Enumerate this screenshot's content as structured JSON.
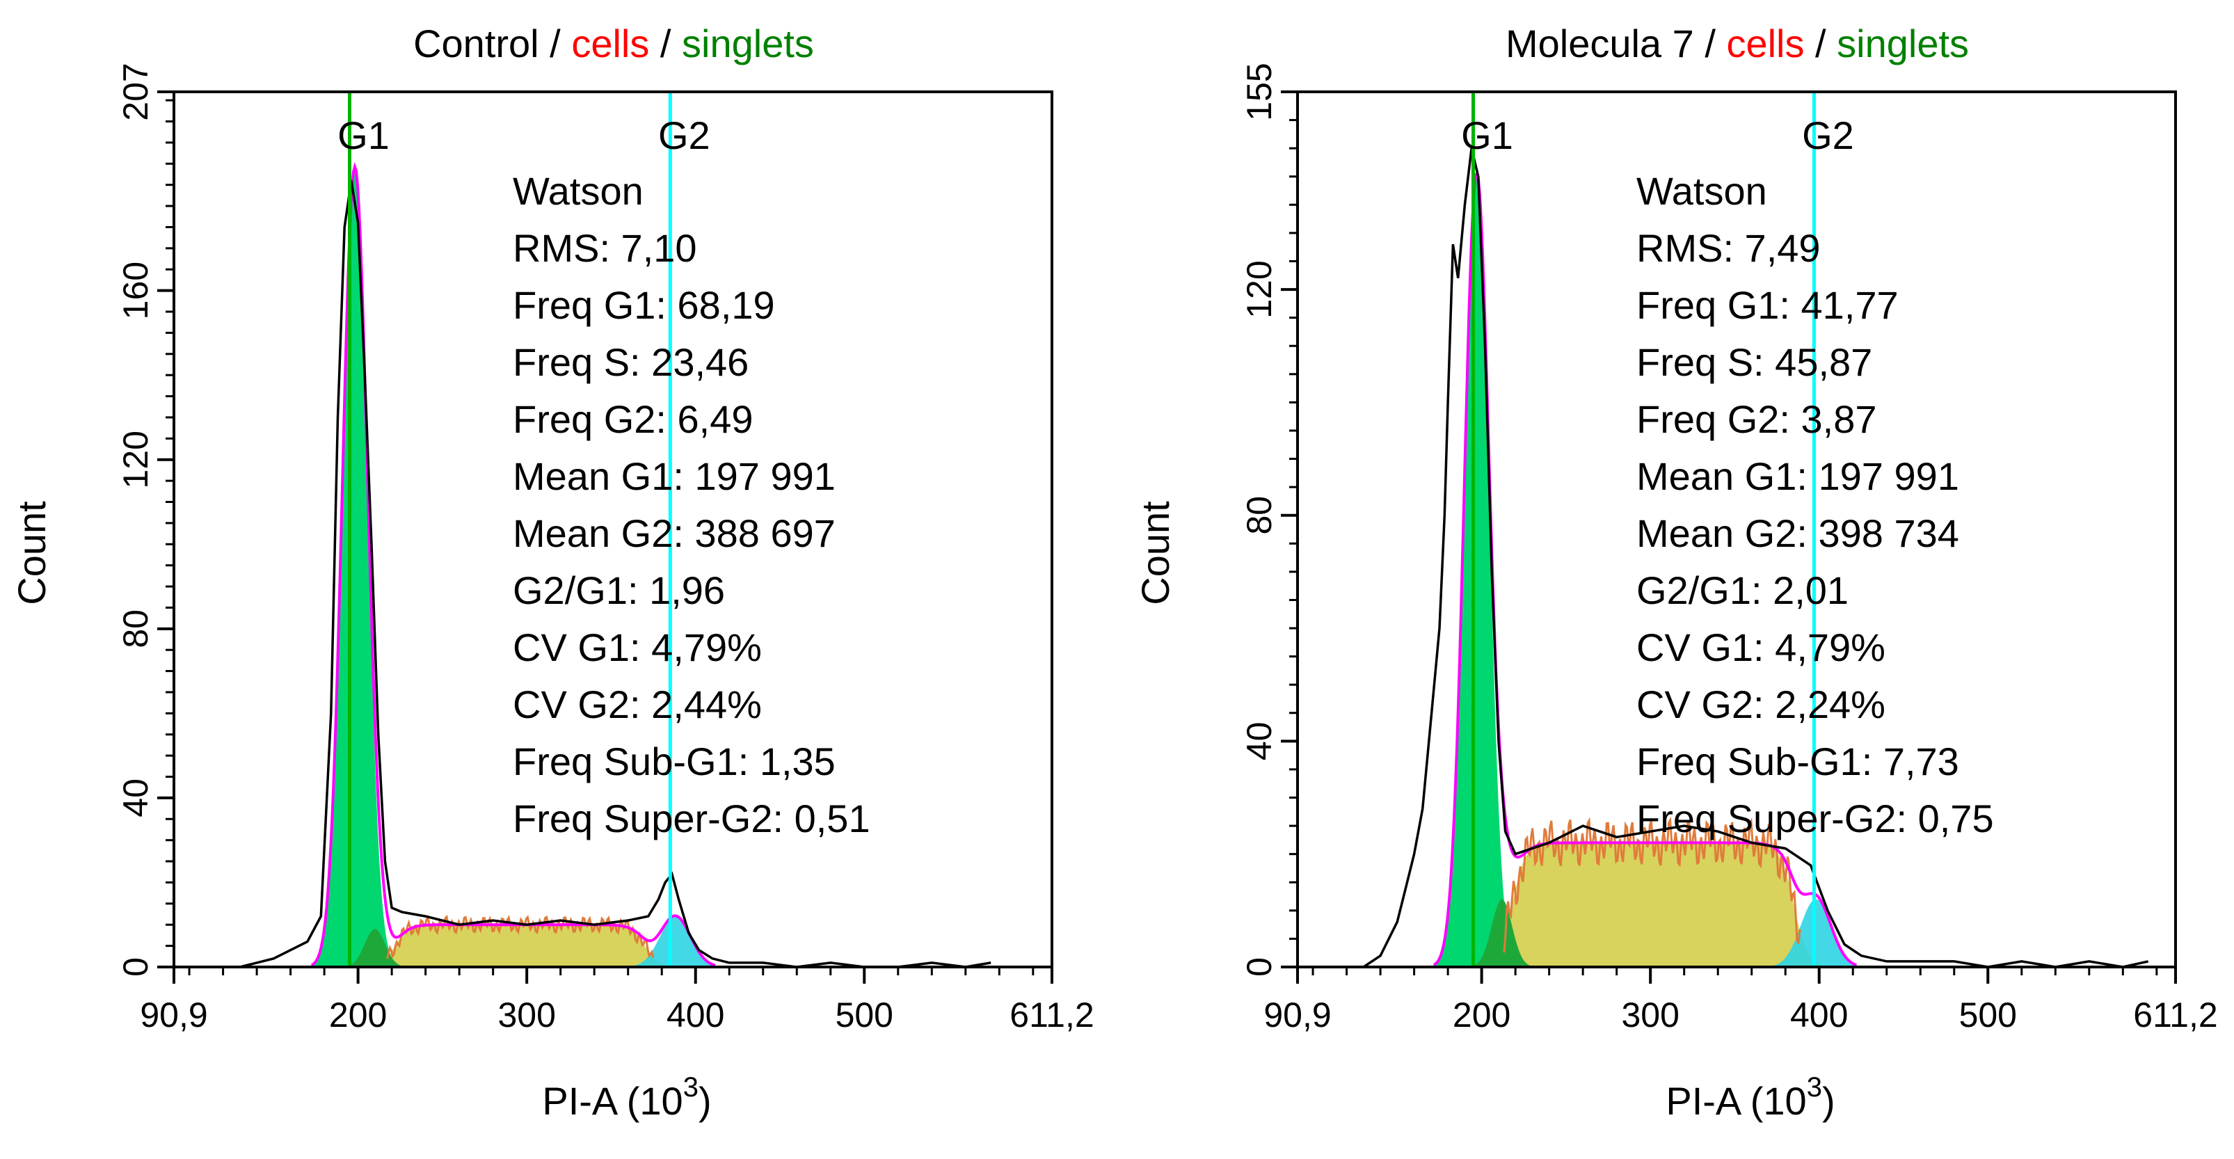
{
  "colors": {
    "raw": "#000000",
    "gate_cells": "#ff0000",
    "gate_singlets": "#008000",
    "g1_fill": "#00d76f",
    "g1_dark": "#1fa83a",
    "s_fill": "#d8d35d",
    "g2_fill": "#2fd4e3",
    "envelope": "#ff00ff",
    "g1_line": "#00b400",
    "g2_line": "#00ffff",
    "fit_line": "#e07b3c"
  },
  "chart_data": [
    {
      "type": "area",
      "title_parts": [
        "Control",
        " / ",
        "cells",
        " / ",
        "singlets"
      ],
      "xlabel": "PI-A",
      "xlabel_unit": "(10",
      "xlabel_exp": "3",
      "xlabel_close": ")",
      "ylabel": "Count",
      "xlim": [
        90.9,
        611.2
      ],
      "ylim": [
        0,
        207
      ],
      "xticks": [
        90.9,
        200,
        300,
        400,
        500,
        611.2
      ],
      "xtick_labels": [
        "90,9",
        "200",
        "300",
        "400",
        "500",
        "611,2"
      ],
      "yticks": [
        0,
        40,
        80,
        120,
        160,
        207
      ],
      "ytick_labels": [
        "0",
        "40",
        "80",
        "120",
        "160",
        "207"
      ],
      "markers": [
        {
          "label": "G1",
          "x": 195
        },
        {
          "label": "G2",
          "x": 385
        }
      ],
      "stats": [
        "Watson",
        "RMS: 7,10",
        "Freq G1: 68,19",
        "Freq S: 23,46",
        "Freq G2: 6,49",
        "Mean G1: 197 991",
        "Mean G2: 388 697",
        "G2/G1: 1,96",
        "CV G1: 4,79%",
        "CV G2: 2,44%",
        "Freq Sub-G1: 1,35",
        "Freq Super-G2: 0,51"
      ],
      "g1": {
        "mean": 198,
        "sd": 7.3,
        "peak": 188
      },
      "g1_late": {
        "mean": 210,
        "sd": 6,
        "peak": 9
      },
      "g2": {
        "mean": 388,
        "sd": 9,
        "peak": 12
      },
      "s_band": {
        "x": [
          222,
          370
        ],
        "level": 10
      },
      "raw": [
        [
          130,
          0
        ],
        [
          140,
          1
        ],
        [
          150,
          2
        ],
        [
          160,
          4
        ],
        [
          170,
          6
        ],
        [
          178,
          12
        ],
        [
          184,
          60
        ],
        [
          188,
          130
        ],
        [
          192,
          175
        ],
        [
          196,
          186
        ],
        [
          200,
          176
        ],
        [
          204,
          140
        ],
        [
          208,
          100
        ],
        [
          212,
          55
        ],
        [
          216,
          25
        ],
        [
          220,
          14
        ],
        [
          226,
          13
        ],
        [
          240,
          12
        ],
        [
          260,
          10
        ],
        [
          280,
          11
        ],
        [
          300,
          10
        ],
        [
          320,
          11
        ],
        [
          340,
          10
        ],
        [
          360,
          11
        ],
        [
          372,
          12
        ],
        [
          378,
          16
        ],
        [
          382,
          20
        ],
        [
          386,
          22
        ],
        [
          390,
          16
        ],
        [
          396,
          8
        ],
        [
          402,
          4
        ],
        [
          410,
          2
        ],
        [
          420,
          1
        ],
        [
          440,
          1
        ],
        [
          460,
          0
        ],
        [
          480,
          1
        ],
        [
          500,
          0
        ],
        [
          520,
          0
        ],
        [
          540,
          1
        ],
        [
          560,
          0
        ],
        [
          575,
          1
        ]
      ]
    },
    {
      "type": "area",
      "title_parts": [
        "Molecula 7",
        " / ",
        "cells",
        " / ",
        "singlets"
      ],
      "xlabel": "PI-A",
      "xlabel_unit": "(10",
      "xlabel_exp": "3",
      "xlabel_close": ")",
      "ylabel": "Count",
      "xlim": [
        90.9,
        611.2
      ],
      "ylim": [
        0,
        155
      ],
      "xticks": [
        90.9,
        200,
        300,
        400,
        500,
        611.2
      ],
      "xtick_labels": [
        "90,9",
        "200",
        "300",
        "400",
        "500",
        "611,2"
      ],
      "yticks": [
        0,
        40,
        80,
        120,
        155
      ],
      "ytick_labels": [
        "0",
        "40",
        "80",
        "120",
        "155"
      ],
      "markers": [
        {
          "label": "G1",
          "x": 195
        },
        {
          "label": "G2",
          "x": 397
        }
      ],
      "stats": [
        "Watson",
        "RMS: 7,49",
        "Freq G1: 41,77",
        "Freq S: 45,87",
        "Freq G2: 3,87",
        "Mean G1: 197 991",
        "Mean G2: 398 734",
        "G2/G1: 2,01",
        "CV G1: 4,79%",
        "CV G2: 2,24%",
        "Freq Sub-G1: 7,73",
        "Freq Super-G2: 0,75"
      ],
      "g1": {
        "mean": 197,
        "sd": 7.3,
        "peak": 140
      },
      "g1_late": {
        "mean": 212,
        "sd": 6,
        "peak": 12
      },
      "g2": {
        "mean": 398,
        "sd": 9,
        "peak": 12
      },
      "s_band": {
        "x": [
          218,
          385
        ],
        "level": 22
      },
      "raw": [
        [
          130,
          0
        ],
        [
          140,
          2
        ],
        [
          150,
          8
        ],
        [
          155,
          14
        ],
        [
          160,
          20
        ],
        [
          165,
          28
        ],
        [
          170,
          44
        ],
        [
          175,
          60
        ],
        [
          178,
          80
        ],
        [
          180,
          100
        ],
        [
          183,
          128
        ],
        [
          186,
          122
        ],
        [
          190,
          135
        ],
        [
          194,
          145
        ],
        [
          198,
          140
        ],
        [
          202,
          110
        ],
        [
          206,
          70
        ],
        [
          210,
          40
        ],
        [
          214,
          24
        ],
        [
          220,
          20
        ],
        [
          240,
          22
        ],
        [
          260,
          25
        ],
        [
          280,
          23
        ],
        [
          300,
          24
        ],
        [
          320,
          25
        ],
        [
          340,
          24
        ],
        [
          360,
          22
        ],
        [
          380,
          21
        ],
        [
          395,
          18
        ],
        [
          405,
          10
        ],
        [
          415,
          4
        ],
        [
          425,
          2
        ],
        [
          440,
          1
        ],
        [
          460,
          1
        ],
        [
          480,
          1
        ],
        [
          500,
          0
        ],
        [
          520,
          1
        ],
        [
          540,
          0
        ],
        [
          560,
          1
        ],
        [
          580,
          0
        ],
        [
          595,
          1
        ]
      ]
    }
  ]
}
